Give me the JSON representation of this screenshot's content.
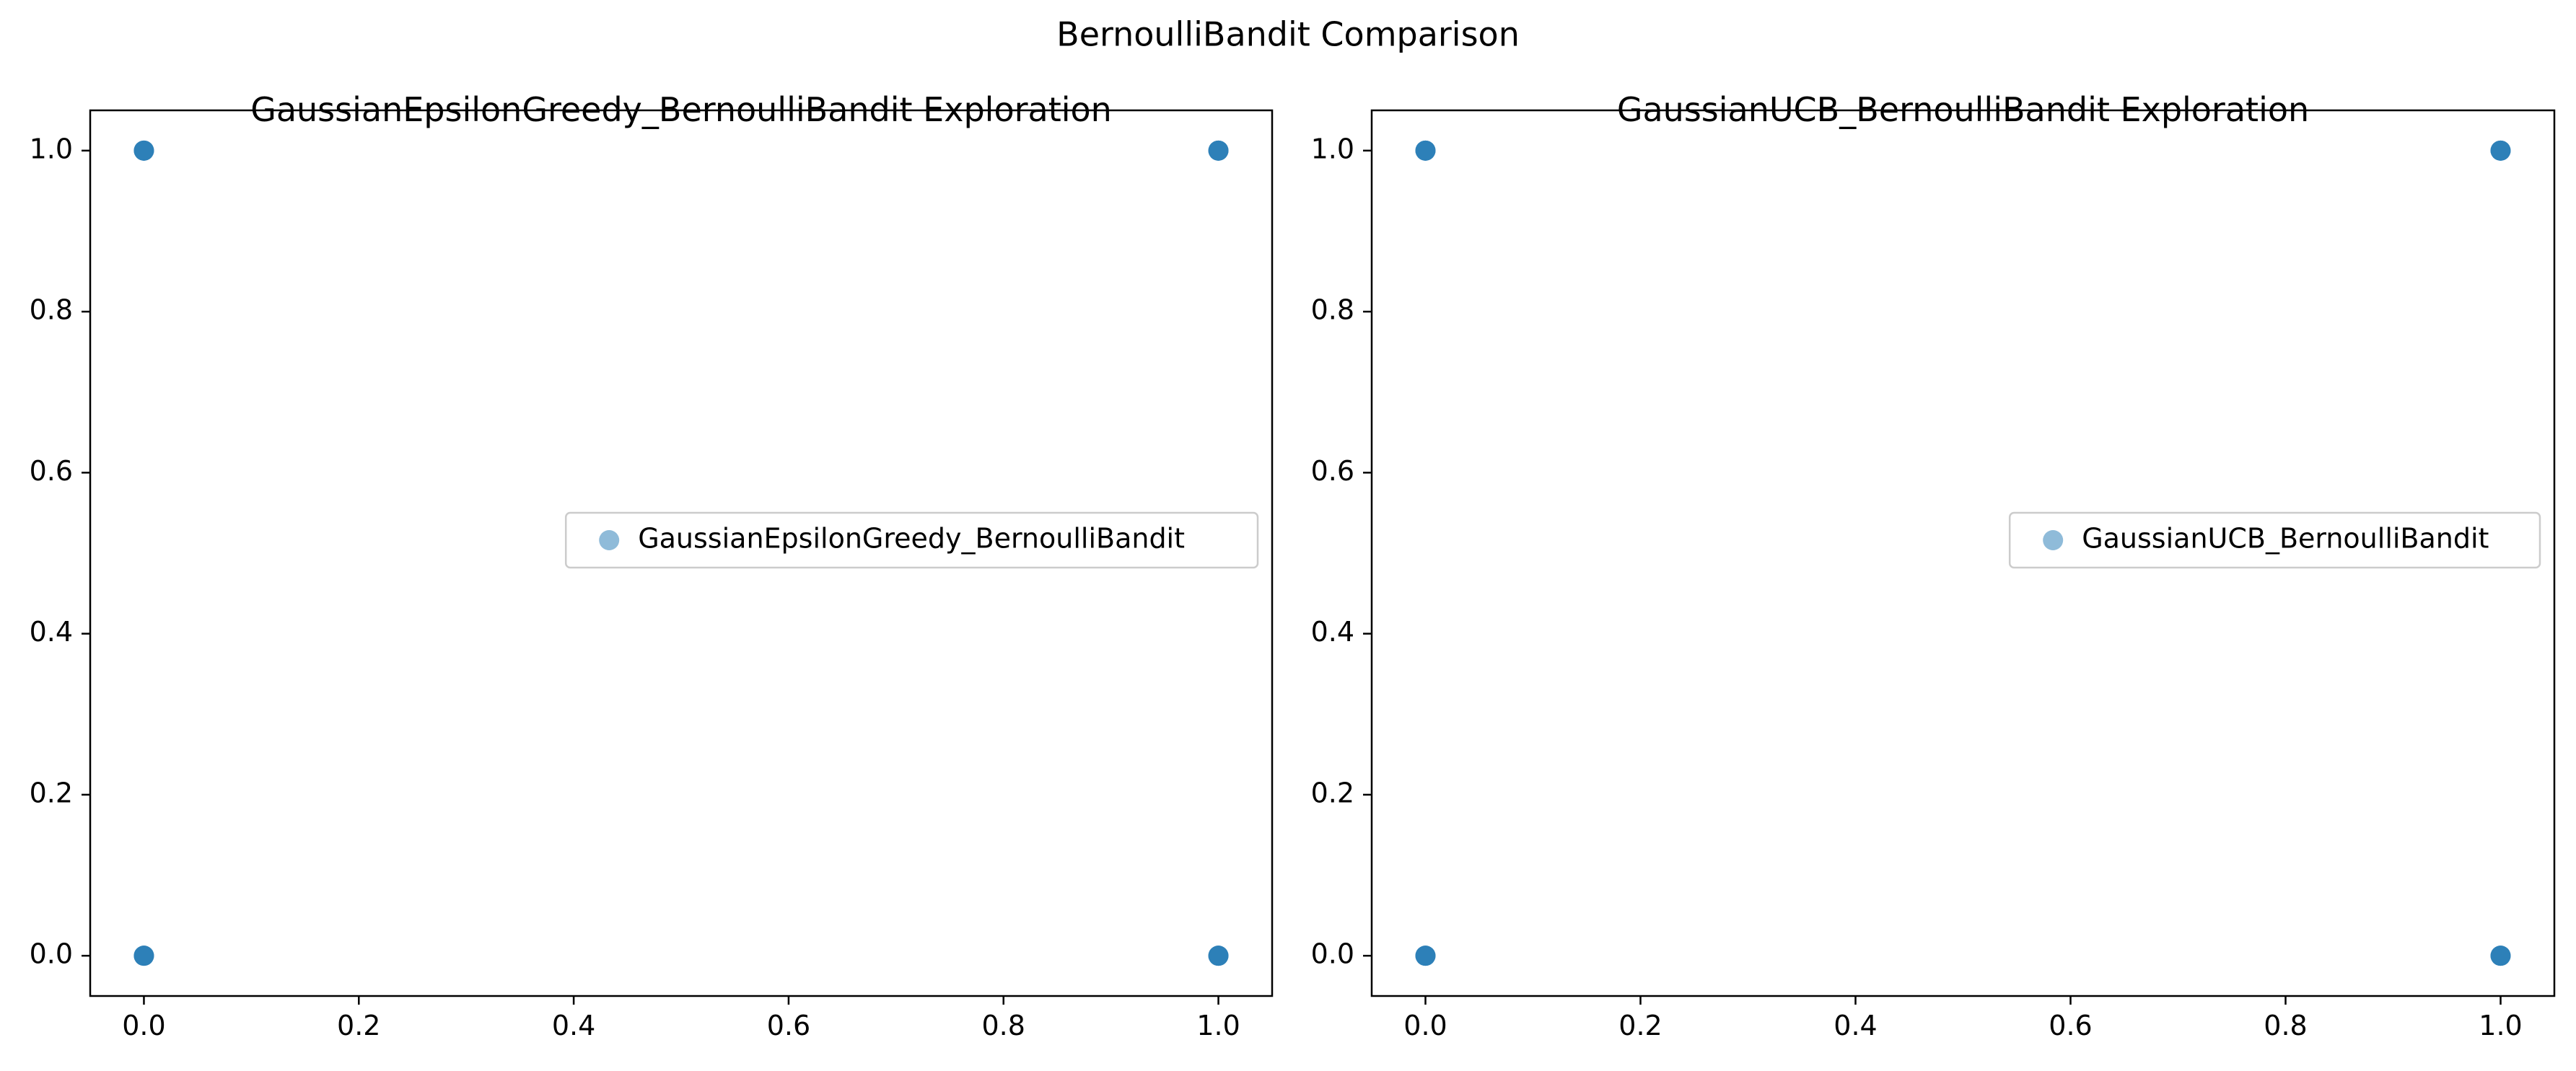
{
  "figure": {
    "suptitle": "BernoulliBandit Comparison"
  },
  "chart_data": [
    {
      "type": "scatter",
      "title": "GaussianEpsilonGreedy_BernoulliBandit Exploration",
      "xlabel": "",
      "ylabel": "",
      "xlim": [
        -0.05,
        1.05
      ],
      "ylim": [
        -0.05,
        1.05
      ],
      "xticks": [
        0.0,
        0.2,
        0.4,
        0.6,
        0.8,
        1.0
      ],
      "yticks": [
        0.0,
        0.2,
        0.4,
        0.6,
        0.8,
        1.0
      ],
      "xtick_labels": [
        "0.0",
        "0.2",
        "0.4",
        "0.6",
        "0.8",
        "1.0"
      ],
      "ytick_labels": [
        "0.0",
        "0.2",
        "0.4",
        "0.6",
        "0.8",
        "1.0"
      ],
      "grid": false,
      "legend_position": "center-right",
      "series": [
        {
          "name": "GaussianEpsilonGreedy_BernoulliBandit",
          "color": "#1f77b4",
          "alpha": 0.5,
          "x": [
            0,
            0,
            1,
            1
          ],
          "y": [
            1,
            0,
            1,
            0
          ]
        }
      ]
    },
    {
      "type": "scatter",
      "title": "GaussianUCB_BernoulliBandit Exploration",
      "xlabel": "",
      "ylabel": "",
      "xlim": [
        -0.05,
        1.05
      ],
      "ylim": [
        -0.05,
        1.05
      ],
      "xticks": [
        0.0,
        0.2,
        0.4,
        0.6,
        0.8,
        1.0
      ],
      "yticks": [
        0.0,
        0.2,
        0.4,
        0.6,
        0.8,
        1.0
      ],
      "xtick_labels": [
        "0.0",
        "0.2",
        "0.4",
        "0.6",
        "0.8",
        "1.0"
      ],
      "ytick_labels": [
        "0.0",
        "0.2",
        "0.4",
        "0.6",
        "0.8",
        "1.0"
      ],
      "grid": false,
      "legend_position": "center-right",
      "series": [
        {
          "name": "GaussianUCB_BernoulliBandit",
          "color": "#1f77b4",
          "alpha": 0.5,
          "x": [
            0,
            0,
            1,
            1
          ],
          "y": [
            1,
            0,
            1,
            0
          ]
        }
      ]
    }
  ]
}
